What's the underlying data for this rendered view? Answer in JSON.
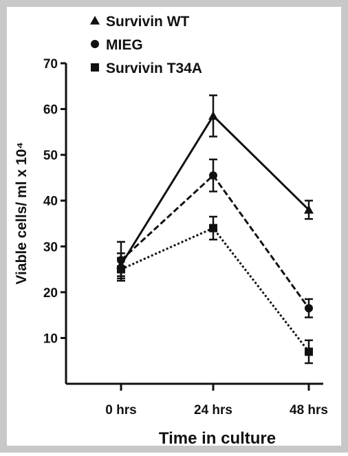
{
  "colors": {
    "frame": "#c8c8c8",
    "plot_background": "#ffffff",
    "ink": "#111111"
  },
  "chart_data": {
    "type": "line",
    "title": "",
    "xlabel": "Time in culture",
    "ylabel": "Viable cells/ ml x 10⁴",
    "categories": [
      "0 hrs",
      "24 hrs",
      "48 hrs"
    ],
    "ylim": [
      0,
      70
    ],
    "yticks": [
      10,
      20,
      30,
      40,
      50,
      60,
      70
    ],
    "grid": false,
    "legend_position": "top-left",
    "series": [
      {
        "name": "Survivin WT",
        "marker": "triangle",
        "line_style": "solid",
        "values": [
          26,
          58.5,
          38
        ],
        "errors": [
          2.5,
          4.5,
          2
        ]
      },
      {
        "name": "MIEG",
        "marker": "circle",
        "line_style": "dashed",
        "values": [
          27,
          45.5,
          16.5
        ],
        "errors": [
          4,
          3.5,
          2
        ]
      },
      {
        "name": "Survivin T34A",
        "marker": "square",
        "line_style": "dotted",
        "values": [
          25,
          34,
          7
        ],
        "errors": [
          2.5,
          2.5,
          2.5
        ]
      }
    ]
  }
}
